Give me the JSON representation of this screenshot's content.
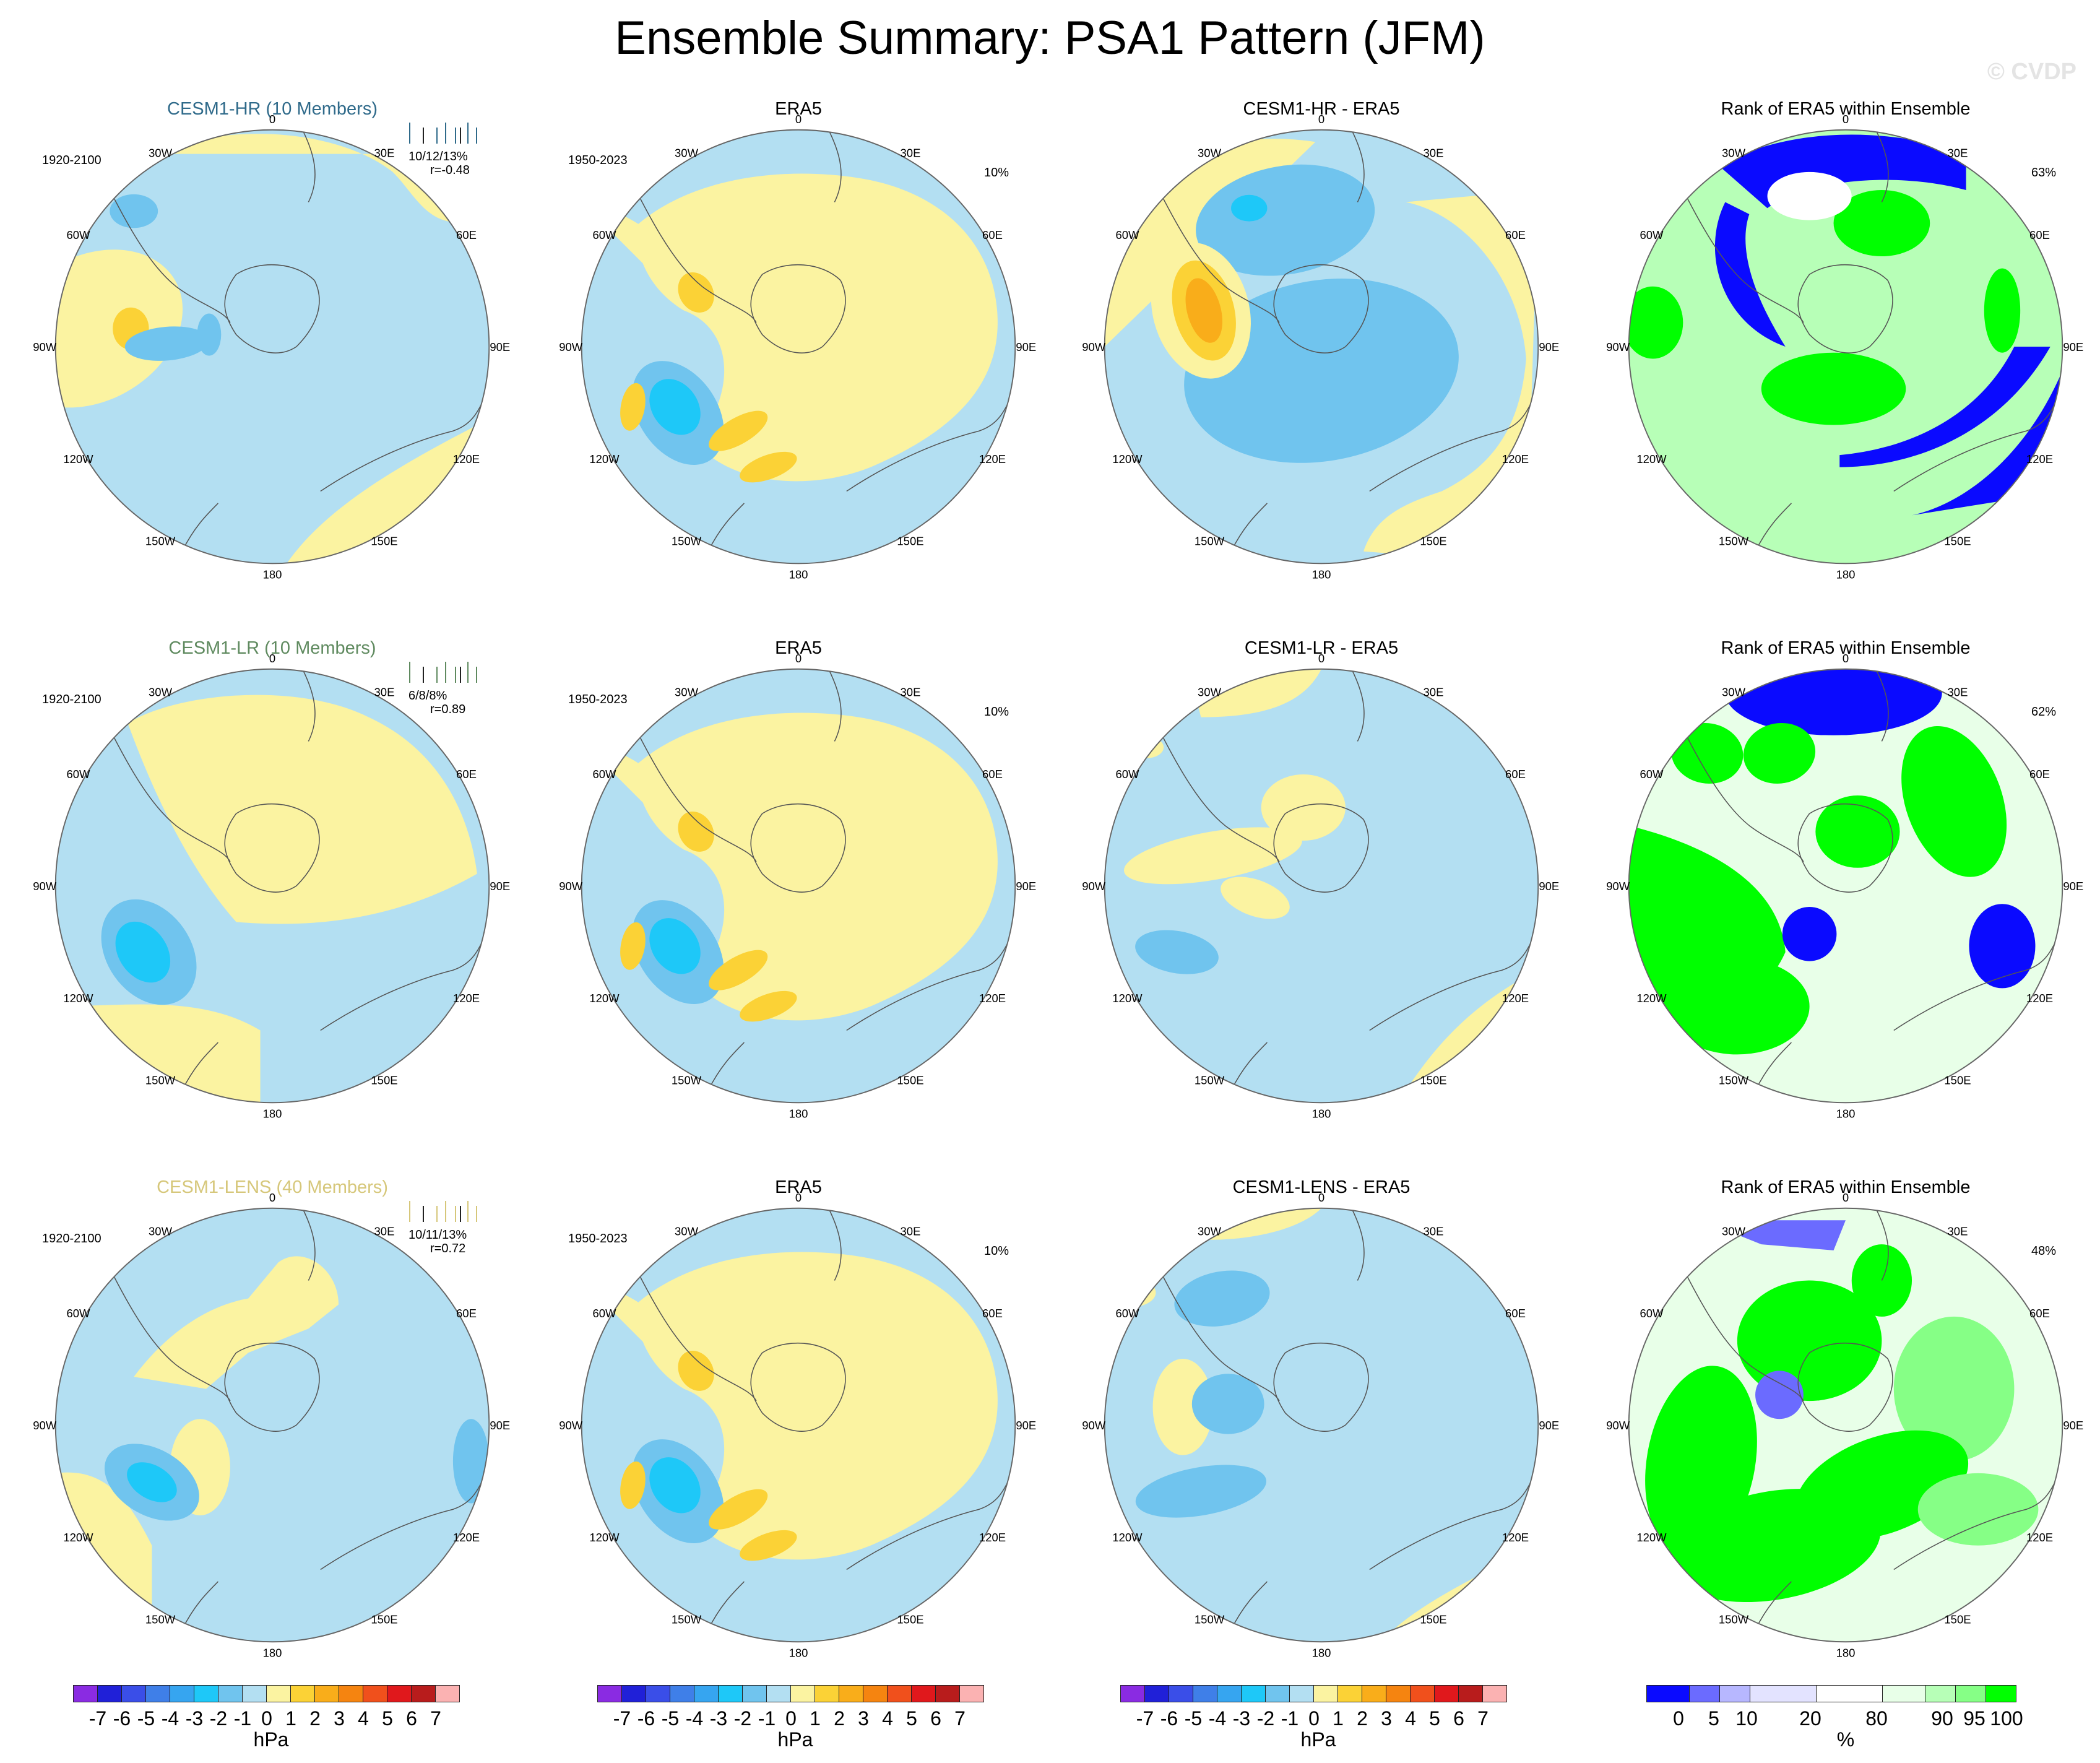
{
  "title": "Ensemble Summary: PSA1 Pattern (JFM)",
  "watermark": "© CVDP",
  "colors": {
    "pressure": [
      "#8a2be2",
      "#2020d8",
      "#3a4ee8",
      "#3f7fe8",
      "#36a5f0",
      "#1ec8f8",
      "#70c4ee",
      "#b3dff2",
      "#fbf3a1",
      "#fbd236",
      "#f9ad1a",
      "#f58410",
      "#f0501c",
      "#e0181c",
      "#b81c1c",
      "#fbb2b2"
    ],
    "rank": [
      "#0a0aff",
      "#6b6bff",
      "#b7b7ff",
      "#e3e3ff",
      "#ffffff",
      "#e8ffe8",
      "#b7ffb7",
      "#86ff86",
      "#00ff00"
    ]
  },
  "longitude_labels": [
    "0",
    "30E",
    "60E",
    "90E",
    "120E",
    "150E",
    "180",
    "150W",
    "120W",
    "90W",
    "60W",
    "30W"
  ],
  "rows": [
    {
      "model": {
        "title": "CESM1-HR (10 Members)",
        "title_color": "#2f6a8a",
        "years": "1920-2100",
        "stats": "10/12/13%",
        "corr": "r=-0.48"
      },
      "obs": {
        "title": "ERA5",
        "years": "1950-2023",
        "pct": "10%"
      },
      "diff": {
        "title": "CESM1-HR - ERA5"
      },
      "rank": {
        "title": "Rank of ERA5 within Ensemble",
        "pct": "63%"
      }
    },
    {
      "model": {
        "title": "CESM1-LR (10 Members)",
        "title_color": "#5f8a5f",
        "years": "1920-2100",
        "stats": "6/8/8%",
        "corr": "r=0.89"
      },
      "obs": {
        "title": "ERA5",
        "years": "1950-2023",
        "pct": "10%"
      },
      "diff": {
        "title": "CESM1-LR - ERA5"
      },
      "rank": {
        "title": "Rank of ERA5 within Ensemble",
        "pct": "62%"
      }
    },
    {
      "model": {
        "title": "CESM1-LENS (40 Members)",
        "title_color": "#d6c77a",
        "years": "1920-2100",
        "stats": "10/11/13%",
        "corr": "r=0.72"
      },
      "obs": {
        "title": "ERA5",
        "years": "1950-2023",
        "pct": "10%"
      },
      "diff": {
        "title": "CESM1-LENS - ERA5"
      },
      "rank": {
        "title": "Rank of ERA5 within Ensemble",
        "pct": "48%"
      }
    }
  ],
  "colorbars": {
    "pressure": {
      "ticks": [
        "-7",
        "-6",
        "-5",
        "-4",
        "-3",
        "-2",
        "-1",
        "0",
        "1",
        "2",
        "3",
        "4",
        "5",
        "6",
        "7"
      ],
      "units": "hPa"
    },
    "rank": {
      "ticks": [
        "0",
        "5",
        "10",
        "20",
        "80",
        "90",
        "95",
        "100"
      ],
      "units": "%"
    }
  }
}
